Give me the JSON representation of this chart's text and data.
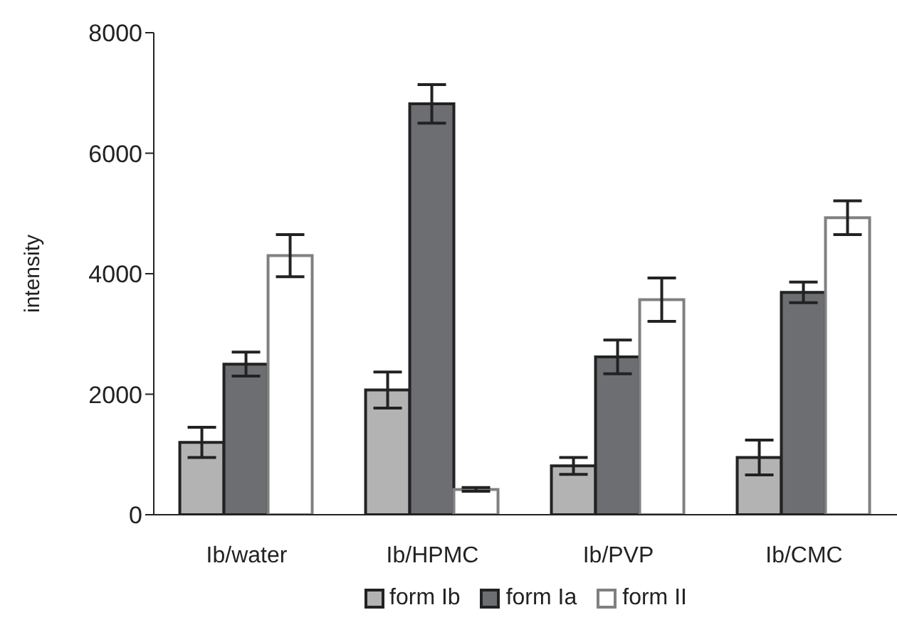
{
  "chart_data": {
    "type": "bar",
    "ylabel": "intensity",
    "categories": [
      "Ib/water",
      "Ib/HPMC",
      "Ib/PVP",
      "Ib/CMC"
    ],
    "series": [
      {
        "name": "form Ib",
        "color": "#b3b3b3",
        "values": [
          1200,
          2070,
          810,
          950
        ],
        "errors": [
          250,
          300,
          140,
          290
        ]
      },
      {
        "name": "form Ia",
        "color": "#6d6e71",
        "values": [
          2500,
          6820,
          2620,
          3690
        ],
        "errors": [
          200,
          320,
          280,
          170
        ]
      },
      {
        "name": "form II",
        "color": "#ffffff",
        "values": [
          4300,
          420,
          3570,
          4930
        ],
        "errors": [
          350,
          30,
          360,
          280
        ]
      }
    ],
    "ylim": [
      0,
      8000
    ],
    "yticks": [
      0,
      2000,
      4000,
      6000,
      8000
    ],
    "grid": false,
    "legend": "bottom"
  }
}
